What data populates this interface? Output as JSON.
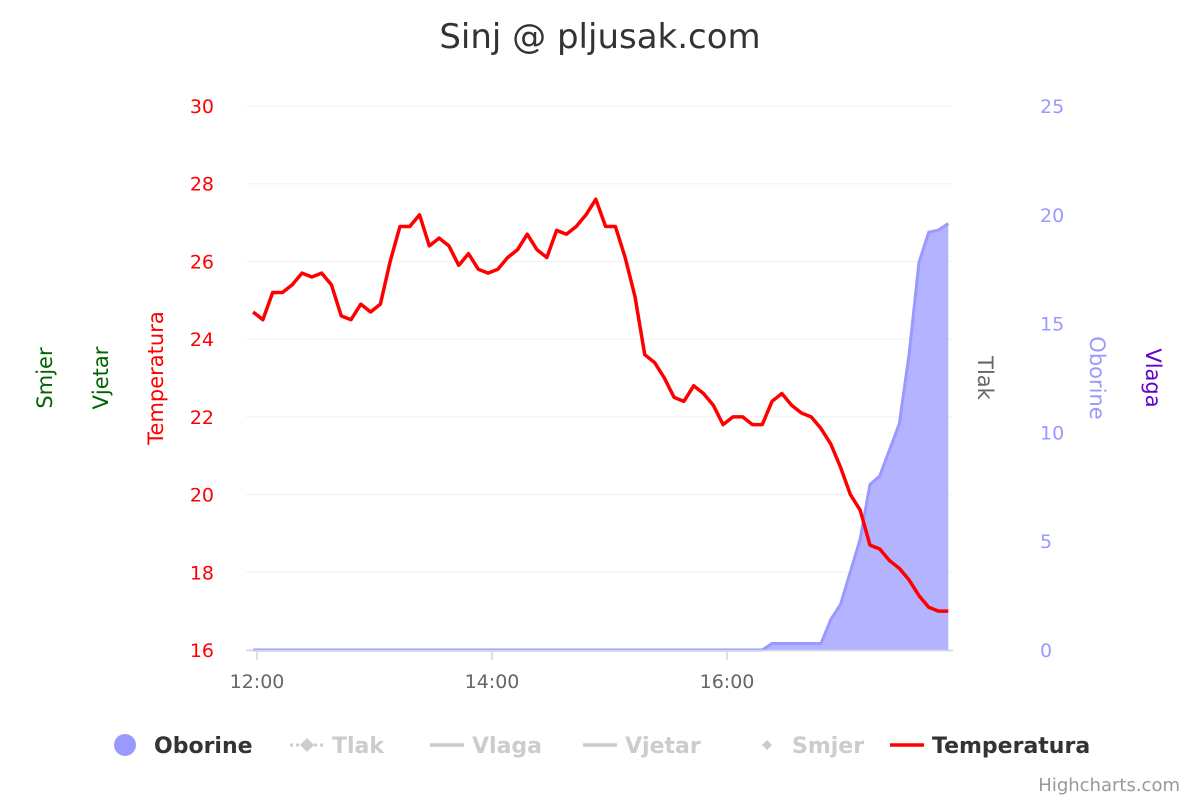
{
  "chart_data": {
    "type": "line",
    "title": "Sinj @ pljusak.com",
    "credits": "Highcharts.com",
    "x": [
      "11:58",
      "12:03",
      "12:08",
      "12:13",
      "12:18",
      "12:23",
      "12:28",
      "12:33",
      "12:38",
      "12:43",
      "12:48",
      "12:53",
      "12:58",
      "13:03",
      "13:08",
      "13:13",
      "13:18",
      "13:23",
      "13:28",
      "13:33",
      "13:38",
      "13:43",
      "13:48",
      "13:53",
      "13:58",
      "14:03",
      "14:08",
      "14:13",
      "14:18",
      "14:23",
      "14:28",
      "14:33",
      "14:38",
      "14:43",
      "14:48",
      "14:53",
      "14:58",
      "15:03",
      "15:08",
      "15:13",
      "15:18",
      "15:23",
      "15:28",
      "15:33",
      "15:38",
      "15:43",
      "15:48",
      "15:53",
      "15:58",
      "16:03",
      "16:08",
      "16:13",
      "16:18",
      "16:23",
      "16:28",
      "16:33",
      "16:38",
      "16:43",
      "16:48",
      "16:53",
      "16:58",
      "17:03",
      "17:08",
      "17:13",
      "17:18",
      "17:23",
      "17:28",
      "17:33",
      "17:38",
      "17:43",
      "17:48",
      "17:53"
    ],
    "x_ticks": [
      "12:00",
      "14:00",
      "16:00"
    ],
    "x_range": [
      "11:55",
      "17:55"
    ],
    "axes": {
      "left": [
        {
          "title": "Smjer",
          "color": "#006400"
        },
        {
          "title": "Vjetar",
          "color": "#006400"
        },
        {
          "title": "Temperatura",
          "color": "#ff0000",
          "range": [
            16,
            30
          ],
          "ticks": [
            "16",
            "18",
            "20",
            "22",
            "24",
            "26",
            "28",
            "30"
          ]
        }
      ],
      "right": [
        {
          "title": "Tlak",
          "color": "#666666"
        },
        {
          "title": "Oborine",
          "color": "#9999ff",
          "range": [
            0,
            25
          ],
          "ticks": [
            "0",
            "5",
            "10",
            "15",
            "20",
            "25"
          ]
        },
        {
          "title": "Vlaga",
          "color": "#6600cc"
        }
      ]
    },
    "grid": true,
    "legend_position": "bottom",
    "series": [
      {
        "name": "Oborine",
        "type": "area",
        "color": "#9999ff",
        "fill": "#b3b3ff",
        "visible": true,
        "axis": "Oborine",
        "values": [
          0,
          0,
          0,
          0,
          0,
          0,
          0,
          0,
          0,
          0,
          0,
          0,
          0,
          0,
          0,
          0,
          0,
          0,
          0,
          0,
          0,
          0,
          0,
          0,
          0,
          0,
          0,
          0,
          0,
          0,
          0,
          0,
          0,
          0,
          0,
          0,
          0,
          0,
          0,
          0,
          0,
          0,
          0,
          0,
          0,
          0,
          0,
          0,
          0,
          0,
          0,
          0,
          0,
          0.3,
          0.3,
          0.3,
          0.3,
          0.3,
          0.3,
          1.4,
          2.1,
          3.6,
          5.1,
          7.6,
          8.0,
          9.2,
          10.4,
          13.6,
          17.8,
          19.2,
          19.3,
          19.6
        ]
      },
      {
        "name": "Tlak",
        "visible": false,
        "symbol": "dash-diamond"
      },
      {
        "name": "Vlaga",
        "visible": false,
        "symbol": "line"
      },
      {
        "name": "Vjetar",
        "visible": false,
        "symbol": "line"
      },
      {
        "name": "Smjer",
        "visible": false,
        "symbol": "diamond"
      },
      {
        "name": "Temperatura",
        "type": "line",
        "color": "#ff0000",
        "visible": true,
        "axis": "Temperatura",
        "values": [
          24.7,
          24.5,
          25.2,
          25.2,
          25.4,
          25.7,
          25.6,
          25.7,
          25.4,
          24.6,
          24.5,
          24.9,
          24.7,
          24.9,
          26.0,
          26.9,
          26.9,
          27.2,
          26.4,
          26.6,
          26.4,
          25.9,
          26.2,
          25.8,
          25.7,
          25.8,
          26.1,
          26.3,
          26.7,
          26.3,
          26.1,
          26.8,
          26.7,
          26.9,
          27.2,
          27.6,
          26.9,
          26.9,
          26.1,
          25.1,
          23.6,
          23.4,
          23.0,
          22.5,
          22.4,
          22.8,
          22.6,
          22.3,
          21.8,
          22.0,
          22.0,
          21.8,
          21.8,
          22.4,
          22.6,
          22.3,
          22.1,
          22.0,
          21.7,
          21.3,
          20.7,
          20.0,
          19.6,
          18.7,
          18.6,
          18.3,
          18.1,
          17.8,
          17.4,
          17.1,
          17.0,
          17.0
        ]
      }
    ]
  }
}
